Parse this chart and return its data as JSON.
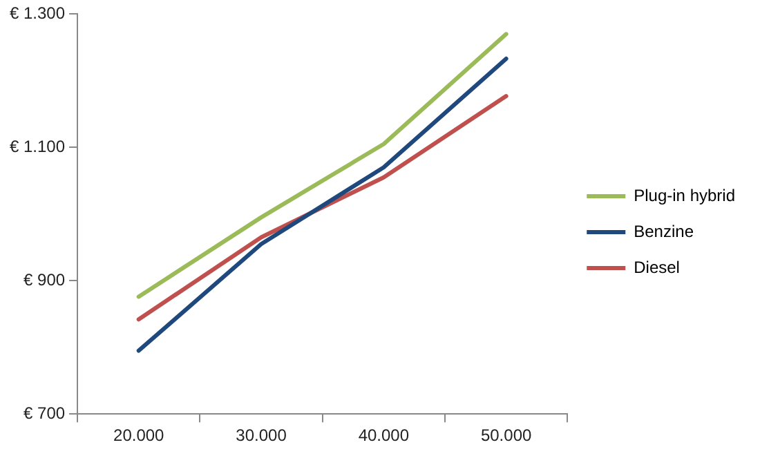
{
  "chart_data": {
    "type": "line",
    "categories": [
      "20.000",
      "30.000",
      "40.000",
      "50.000"
    ],
    "series": [
      {
        "name": "Plug-in hybrid",
        "color": "#9bbb59",
        "values": [
          876,
          995,
          1105,
          1270
        ]
      },
      {
        "name": "Benzine",
        "color": "#1f497d",
        "values": [
          795,
          955,
          1070,
          1233
        ]
      },
      {
        "name": "Diesel",
        "color": "#c0504d",
        "values": [
          842,
          965,
          1055,
          1177
        ]
      }
    ],
    "ylim": [
      700,
      1300
    ],
    "yticks": [
      {
        "value": 700,
        "label": "€ 700"
      },
      {
        "value": 900,
        "label": "€ 900"
      },
      {
        "value": 1100,
        "label": "€ 1.100"
      },
      {
        "value": 1300,
        "label": "€ 1.300"
      }
    ],
    "grid": false,
    "legend": "right",
    "marker": "none",
    "line_style": "solid"
  }
}
